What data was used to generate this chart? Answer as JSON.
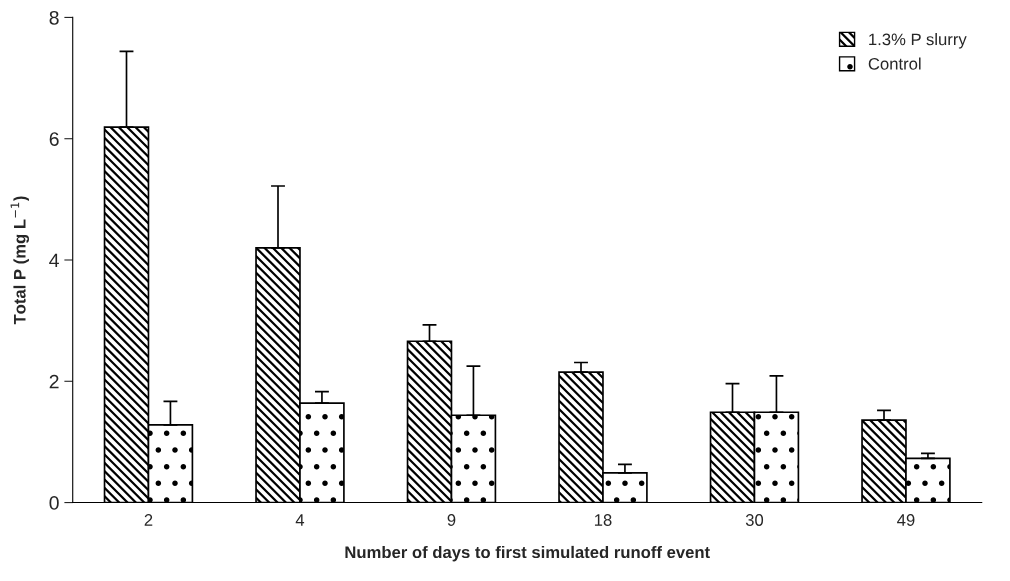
{
  "chart_data": {
    "type": "bar",
    "xlabel": "Number of days to first simulated runoff event",
    "ylabel": "Total P (mg L$^{−1}$)",
    "categories": [
      "2",
      "4",
      "9",
      "18",
      "30",
      "49"
    ],
    "series": [
      {
        "name": "1.3% P slurry",
        "color": "#000000",
        "values": [
          6.19,
          4.2,
          2.66,
          2.15,
          1.49,
          1.36
        ],
        "errors": [
          [
            6.19,
            7.44
          ],
          [
            4.2,
            5.22
          ],
          [
            2.66,
            2.93
          ],
          [
            2.15,
            2.31
          ],
          [
            1.49,
            1.96
          ],
          [
            1.36,
            1.52
          ]
        ]
      },
      {
        "name": "Control",
        "color": "#000000",
        "values": [
          1.28,
          1.64,
          1.44,
          0.49,
          1.49,
          0.73
        ],
        "errors": [
          [
            1.28,
            1.67
          ],
          [
            1.64,
            1.83
          ],
          [
            1.44,
            2.25
          ],
          [
            0.49,
            0.63
          ],
          [
            1.49,
            2.09
          ],
          [
            0.73,
            0.81
          ]
        ]
      }
    ],
    "ylim": [
      0,
      8
    ],
    "yticks": [
      0,
      2,
      4,
      6,
      8
    ],
    "grid": false,
    "legend": "top right"
  }
}
